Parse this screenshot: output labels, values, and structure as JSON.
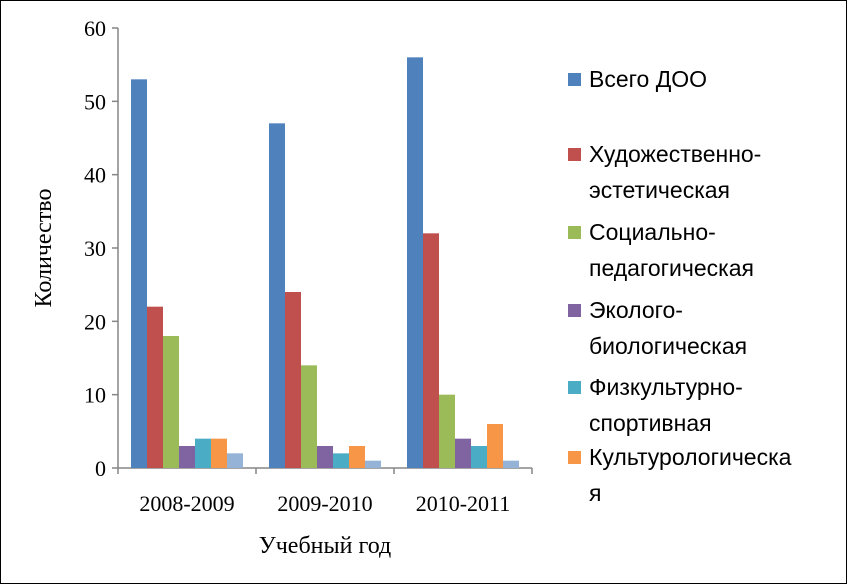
{
  "chart_data": {
    "type": "bar",
    "categories": [
      "2008-2009",
      "2009-2010",
      "2010-2011"
    ],
    "series": [
      {
        "name": "Всего  ДОО",
        "values": [
          53,
          47,
          56
        ],
        "color": "#4F81BD"
      },
      {
        "name": "Художественно-эстетическая",
        "values": [
          22,
          24,
          32
        ],
        "color": "#C0504D"
      },
      {
        "name": "Социально-педагогическая",
        "values": [
          18,
          14,
          10
        ],
        "color": "#9BBB59"
      },
      {
        "name": "Эколого-биологическая",
        "values": [
          3,
          3,
          4
        ],
        "color": "#8064A2"
      },
      {
        "name": "Физкультурно-спортивная",
        "values": [
          4,
          2,
          3
        ],
        "color": "#4BACC6"
      },
      {
        "name": "Культурологическая",
        "values": [
          4,
          3,
          6
        ],
        "color": "#F79646"
      },
      {
        "name": "",
        "values": [
          2,
          1,
          1
        ],
        "color": "#95B3D7"
      }
    ],
    "xlabel": "Учебный год",
    "ylabel": "Количество",
    "ylim": [
      0,
      60
    ],
    "yticks": [
      0,
      10,
      20,
      30,
      40,
      50,
      60
    ],
    "legend": {
      "position": "right",
      "entries": [
        {
          "lines": [
            "Всего  ДОО"
          ],
          "color": "#4F81BD"
        },
        {
          "lines": [
            "Художественно-",
            "эстетическая"
          ],
          "color": "#C0504D"
        },
        {
          "lines": [
            "Социально-",
            "педагогическая"
          ],
          "color": "#9BBB59"
        },
        {
          "lines": [
            "Эколого-",
            "биологическая"
          ],
          "color": "#8064A2"
        },
        {
          "lines": [
            "Физкультурно-",
            "спортивная"
          ],
          "color": "#4BACC6"
        },
        {
          "lines": [
            "Культурологическа",
            "я"
          ],
          "color": "#F79646"
        }
      ]
    },
    "grid": false
  }
}
